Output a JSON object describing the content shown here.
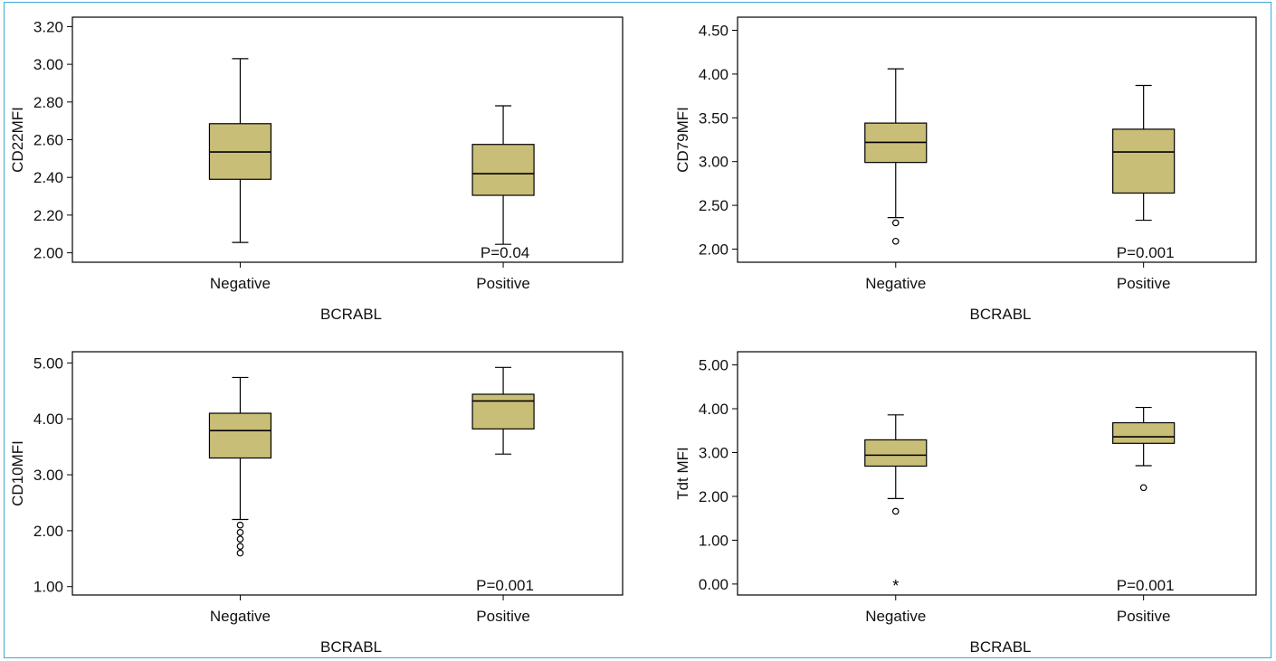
{
  "colors": {
    "box_fill": "#c9be78",
    "frame_border": "#3fa9d6",
    "line": "#000000"
  },
  "chart_data": [
    {
      "type": "boxplot",
      "ylabel": "CD22MFI",
      "xlabel": "BCRABL",
      "categories": [
        "Negative",
        "Positive"
      ],
      "ylim": [
        1.95,
        3.25
      ],
      "yticks": [
        2.0,
        2.2,
        2.4,
        2.6,
        2.8,
        3.0,
        3.2
      ],
      "ytick_labels": [
        "2.00",
        "2.20",
        "2.40",
        "2.60",
        "2.80",
        "3.00",
        "3.20"
      ],
      "boxes": [
        {
          "category": "Negative",
          "whisker_low": 2.055,
          "q1": 2.39,
          "median": 2.535,
          "q3": 2.685,
          "whisker_high": 3.03,
          "outliers": [],
          "extremes": []
        },
        {
          "category": "Positive",
          "whisker_low": 2.045,
          "q1": 2.305,
          "median": 2.42,
          "q3": 2.575,
          "whisker_high": 2.78,
          "outliers": [],
          "extremes": []
        }
      ],
      "annotation": "P=0.04"
    },
    {
      "type": "boxplot",
      "ylabel": "CD79MFI",
      "xlabel": "BCRABL",
      "categories": [
        "Negative",
        "Positive"
      ],
      "ylim": [
        1.85,
        4.65
      ],
      "yticks": [
        2.0,
        2.5,
        3.0,
        3.5,
        4.0,
        4.5
      ],
      "ytick_labels": [
        "2.00",
        "2.50",
        "3.00",
        "3.50",
        "4.00",
        "4.50"
      ],
      "boxes": [
        {
          "category": "Negative",
          "whisker_low": 2.36,
          "q1": 2.99,
          "median": 3.22,
          "q3": 3.44,
          "whisker_high": 4.06,
          "outliers": [
            2.3,
            2.09
          ],
          "extremes": []
        },
        {
          "category": "Positive",
          "whisker_low": 2.33,
          "q1": 2.64,
          "median": 3.11,
          "q3": 3.37,
          "whisker_high": 3.87,
          "outliers": [],
          "extremes": []
        }
      ],
      "annotation": "P=0.001"
    },
    {
      "type": "boxplot",
      "ylabel": "CD10MFI",
      "xlabel": "BCRABL",
      "categories": [
        "Negative",
        "Positive"
      ],
      "ylim": [
        0.85,
        5.2
      ],
      "yticks": [
        1.0,
        2.0,
        3.0,
        4.0,
        5.0
      ],
      "ytick_labels": [
        "1.00",
        "2.00",
        "3.00",
        "4.00",
        "5.00"
      ],
      "boxes": [
        {
          "category": "Negative",
          "whisker_low": 2.2,
          "q1": 3.3,
          "median": 3.79,
          "q3": 4.1,
          "whisker_high": 4.74,
          "outliers": [
            2.1,
            1.97,
            1.85,
            1.72,
            1.6
          ],
          "extremes": []
        },
        {
          "category": "Positive",
          "whisker_low": 3.37,
          "q1": 3.82,
          "median": 4.32,
          "q3": 4.44,
          "whisker_high": 4.92,
          "outliers": [],
          "extremes": []
        }
      ],
      "annotation": "P=0.001"
    },
    {
      "type": "boxplot",
      "ylabel": "Tdt MFI",
      "xlabel": "BCRABL",
      "categories": [
        "Negative",
        "Positive"
      ],
      "ylim": [
        -0.25,
        5.3
      ],
      "yticks": [
        0.0,
        1.0,
        2.0,
        3.0,
        4.0,
        5.0
      ],
      "ytick_labels": [
        "0.00",
        "1.00",
        "2.00",
        "3.00",
        "4.00",
        "5.00"
      ],
      "boxes": [
        {
          "category": "Negative",
          "whisker_low": 1.95,
          "q1": 2.69,
          "median": 2.94,
          "q3": 3.29,
          "whisker_high": 3.86,
          "outliers": [
            1.66
          ],
          "extremes": [
            0.0
          ]
        },
        {
          "category": "Positive",
          "whisker_low": 2.7,
          "q1": 3.21,
          "median": 3.36,
          "q3": 3.68,
          "whisker_high": 4.03,
          "outliers": [
            2.2
          ],
          "extremes": []
        }
      ],
      "annotation": "P=0.001"
    }
  ]
}
